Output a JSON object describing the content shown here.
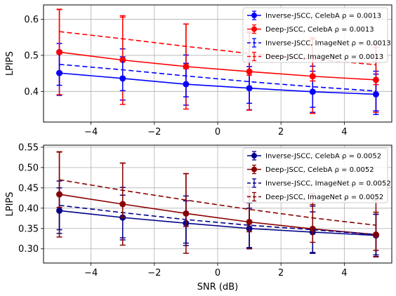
{
  "chart_data": [
    {
      "type": "line",
      "ylabel": "LPIPS",
      "xlabel": "",
      "xlim": [
        -5.5,
        5.5
      ],
      "ylim": [
        0.315,
        0.64
      ],
      "xticks": [
        "−4",
        "−2",
        "0",
        "2",
        "4"
      ],
      "xtick_values": [
        -4,
        -2,
        0,
        2,
        4
      ],
      "yticks": [
        "0.4",
        "0.5",
        "0.6"
      ],
      "ytick_values": [
        0.4,
        0.5,
        0.6
      ],
      "grid": true,
      "legend_position": "top-right",
      "x": [
        -5,
        -3,
        -1,
        1,
        3,
        5
      ],
      "series": [
        {
          "name": "Inverse-JSCC, CelebA ρ=0.0013",
          "color": "#0000ff",
          "dashed": false,
          "marker": true,
          "values": [
            0.451,
            0.436,
            0.42,
            0.409,
            0.399,
            0.392
          ],
          "err": [
            0.062,
            0.06,
            0.058,
            0.06,
            0.057,
            0.056
          ]
        },
        {
          "name": "Deep-JSCC, CelebA ρ=0.0013",
          "color": "#ff0000",
          "dashed": false,
          "marker": true,
          "values": [
            0.509,
            0.487,
            0.469,
            0.455,
            0.442,
            0.432
          ],
          "err": [
            0.118,
            0.123,
            0.118,
            0.107,
            0.103,
            0.09
          ]
        },
        {
          "name": "Inverse-JSCC, ImageNet ρ=0.0013",
          "color": "#0000ff",
          "dashed": true,
          "marker": false,
          "values": [
            0.475,
            0.46,
            0.443,
            0.427,
            0.413,
            0.401
          ],
          "err": [
            0.058,
            0.058,
            0.058,
            0.06,
            0.057,
            0.055
          ]
        },
        {
          "name": "Deep-JSCC, ImageNet ρ=0.0013",
          "color": "#ff0000",
          "dashed": true,
          "marker": false,
          "values": [
            0.566,
            0.546,
            0.525,
            0.505,
            0.489,
            0.474
          ],
          "err": [
            0.062,
            0.06,
            0.062,
            0.06,
            0.06,
            0.055
          ]
        }
      ],
      "legend": [
        "Inverse-JSCC, CelebA ρ = 0.0013",
        "Deep-JSCC, CelebA ρ = 0.0013",
        "Inverse-JSCC, ImageNet ρ = 0.0013",
        "Deep-JSCC, ImageNet ρ = 0.0013"
      ]
    },
    {
      "type": "line",
      "ylabel": "LPIPS",
      "xlabel": "SNR (dB)",
      "xlim": [
        -5.5,
        5.5
      ],
      "ylim": [
        0.265,
        0.555
      ],
      "xticks": [
        "−4",
        "−2",
        "0",
        "2",
        "4"
      ],
      "xtick_values": [
        -4,
        -2,
        0,
        2,
        4
      ],
      "yticks": [
        "0.30",
        "0.35",
        "0.40",
        "0.45",
        "0.50",
        "0.55"
      ],
      "ytick_values": [
        0.3,
        0.35,
        0.4,
        0.45,
        0.5,
        0.55
      ],
      "grid": true,
      "legend_position": "top-right",
      "x": [
        -5,
        -3,
        -1,
        1,
        3,
        5
      ],
      "series": [
        {
          "name": "Inverse-JSCC, CelebA ρ=0.0052",
          "color": "#00008b",
          "dashed": false,
          "marker": true,
          "values": [
            0.394,
            0.377,
            0.363,
            0.35,
            0.341,
            0.333
          ],
          "err": [
            0.056,
            0.055,
            0.055,
            0.05,
            0.05,
            0.052
          ]
        },
        {
          "name": "Deep-JSCC, CelebA ρ=0.0052",
          "color": "#8b0000",
          "dashed": false,
          "marker": true,
          "values": [
            0.434,
            0.41,
            0.387,
            0.366,
            0.349,
            0.335
          ],
          "err": [
            0.105,
            0.101,
            0.098,
            0.065,
            0.06,
            0.055
          ]
        },
        {
          "name": "Inverse-JSCC, ImageNet ρ=0.0052",
          "color": "#00008b",
          "dashed": true,
          "marker": false,
          "values": [
            0.407,
            0.389,
            0.372,
            0.358,
            0.347,
            0.335
          ],
          "err": [
            0.06,
            0.062,
            0.058,
            0.055,
            0.058,
            0.05
          ]
        },
        {
          "name": "Deep-JSCC, ImageNet ρ=0.0052",
          "color": "#8b0000",
          "dashed": true,
          "marker": false,
          "values": [
            0.47,
            0.444,
            0.42,
            0.397,
            0.376,
            0.358
          ],
          "err": [
            0.068,
            0.067,
            0.065,
            0.055,
            0.06,
            0.062
          ]
        }
      ],
      "legend": [
        "Inverse-JSCC, CelebA ρ = 0.0052",
        "Deep-JSCC, CelebA ρ = 0.0052",
        "Inverse-JSCC, ImageNet ρ = 0.0052",
        "Deep-JSCC, ImageNet ρ = 0.0052"
      ]
    }
  ]
}
